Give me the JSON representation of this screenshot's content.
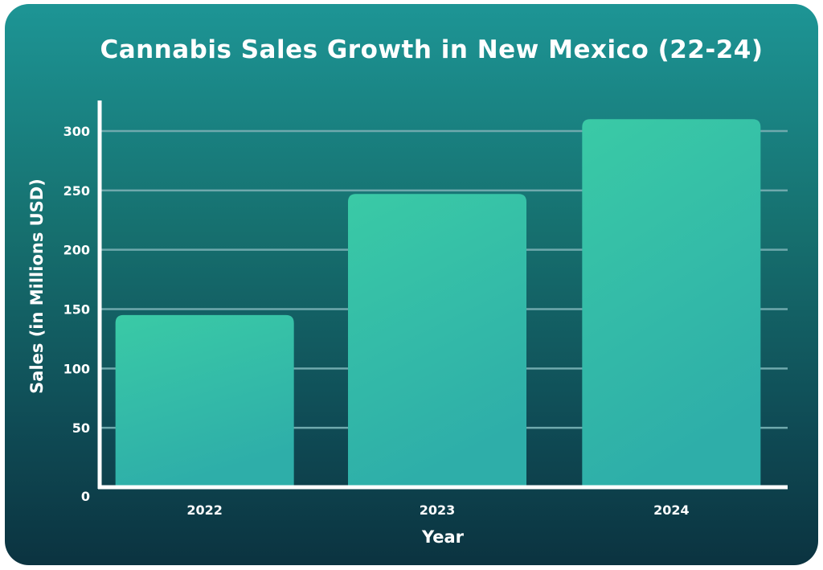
{
  "chart_data": {
    "type": "bar",
    "title": "Cannabis Sales Growth in New Mexico (22-24)",
    "xlabel": "Year",
    "ylabel": "Sales (in Millions USD)",
    "categories": [
      "2022",
      "2023",
      "2024"
    ],
    "values": [
      145,
      247,
      310
    ],
    "yticks": [
      0,
      50,
      100,
      150,
      200,
      250,
      300
    ],
    "ylim": [
      0,
      325
    ],
    "grid": true,
    "colors": {
      "bar_top": "#3acaa6",
      "bar_bottom": "#2eaea9",
      "grid": "#6fa9ad",
      "axis": "#ffffff"
    }
  }
}
